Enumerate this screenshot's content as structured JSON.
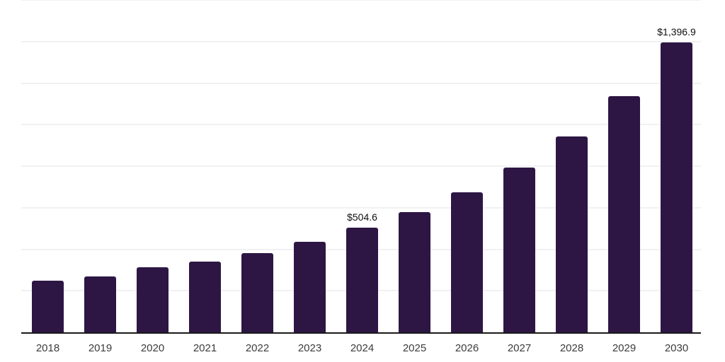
{
  "chart_data": {
    "type": "bar",
    "categories": [
      "2018",
      "2019",
      "2020",
      "2021",
      "2022",
      "2023",
      "2024",
      "2025",
      "2026",
      "2027",
      "2028",
      "2029",
      "2030"
    ],
    "values": [
      247,
      268,
      312,
      339,
      383,
      437,
      504.6,
      580,
      675,
      793,
      942,
      1136,
      1396.9
    ],
    "data_labels": {
      "2024": "$504.6",
      "2030": "$1,396.9"
    },
    "title": "",
    "xlabel": "",
    "ylabel": "",
    "ylim": [
      0,
      1600
    ],
    "grid_step": 200,
    "grid_visible": true,
    "y_tick_labels_visible": false,
    "legend_position": "none",
    "bar_color": "#2d1644",
    "grid_color": "#f1f1f4",
    "axis_line_color": "#1a1a1a",
    "value_label_color": "#0f0f0f",
    "tick_label_color": "#3c3c3c",
    "background_color": "#ffffff"
  }
}
